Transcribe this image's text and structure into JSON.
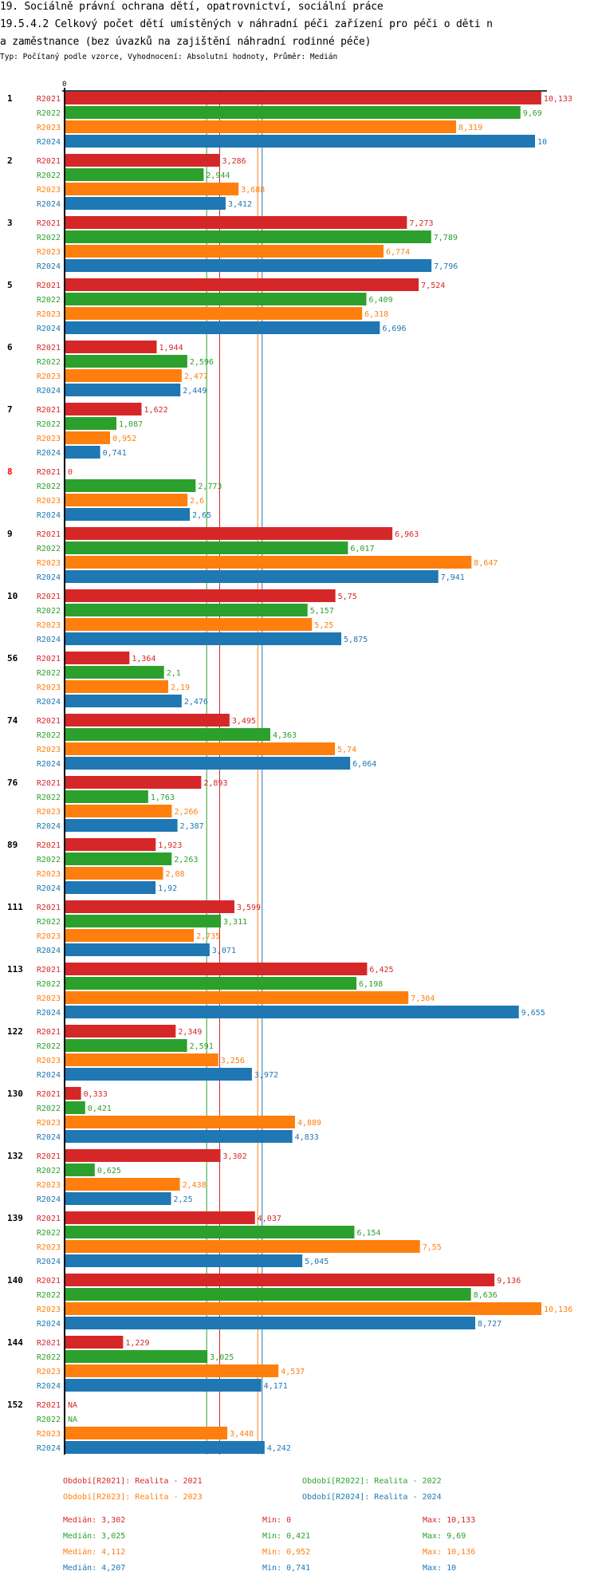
{
  "header": {
    "title_line1": "19. Sociálně právní ochrana dětí, opatrovnictví, sociální práce",
    "title_line2": "19.5.4.2 Celkový počet dětí umístěných v náhradní péči zařízení pro péči o děti n",
    "title_line3": "a zaměstnance (bez úvazků na zajištění náhradní rodinné péče)",
    "subtitle": "Typ: Počítaný podle vzorce, Vyhodnocení: Absolutní hodnoty, Průměr: Medián"
  },
  "colors": {
    "R2021": "#d62728",
    "R2022": "#2ca02c",
    "R2023": "#ff7f0e",
    "R2024": "#1f77b4",
    "highlight_category": "#ff0000"
  },
  "chart_data": {
    "type": "bar",
    "orientation": "horizontal",
    "title": "19.5.4.2 Celkový počet dětí umístěných v náhradní péči zařízení pro péči o děti na zaměstnance (bez úvazků na zajištění náhradní rodinné péče)",
    "xlabel": "",
    "ylabel": "",
    "x_tick_labels": [
      "0"
    ],
    "xlim": [
      0,
      10.2
    ],
    "grid": false,
    "legend_position": "bottom",
    "categories": [
      "1",
      "2",
      "3",
      "5",
      "6",
      "7",
      "8",
      "9",
      "10",
      "56",
      "74",
      "76",
      "89",
      "111",
      "113",
      "122",
      "130",
      "132",
      "139",
      "140",
      "144",
      "152"
    ],
    "highlighted_categories": [
      "8"
    ],
    "series": [
      {
        "name": "R2021",
        "values": [
          10.133,
          3.286,
          7.273,
          7.524,
          1.944,
          1.622,
          0,
          6.963,
          5.75,
          1.364,
          3.495,
          2.893,
          1.923,
          3.599,
          6.425,
          2.349,
          0.333,
          3.302,
          4.037,
          9.136,
          1.229,
          null
        ],
        "labels": [
          "10,133",
          "3,286",
          "7,273",
          "7,524",
          "1,944",
          "1,622",
          "0",
          "6,963",
          "5,75",
          "1,364",
          "3,495",
          "2,893",
          "1,923",
          "3,599",
          "6,425",
          "2,349",
          "0,333",
          "3,302",
          "4,037",
          "9,136",
          "1,229",
          "NA"
        ]
      },
      {
        "name": "R2022",
        "values": [
          9.69,
          2.944,
          7.789,
          6.409,
          2.596,
          1.087,
          2.773,
          6.017,
          5.157,
          2.1,
          4.363,
          1.763,
          2.263,
          3.311,
          6.198,
          2.591,
          0.421,
          0.625,
          6.154,
          8.636,
          3.025,
          null
        ],
        "labels": [
          "9,69",
          "2,944",
          "7,789",
          "6,409",
          "2,596",
          "1,087",
          "2,773",
          "6,017",
          "5,157",
          "2,1",
          "4,363",
          "1,763",
          "2,263",
          "3,311",
          "6,198",
          "2,591",
          "0,421",
          "0,625",
          "6,154",
          "8,636",
          "3,025",
          "NA"
        ]
      },
      {
        "name": "R2023",
        "values": [
          8.319,
          3.688,
          6.774,
          6.318,
          2.477,
          0.952,
          2.6,
          8.647,
          5.25,
          2.19,
          5.74,
          2.266,
          2.08,
          2.735,
          7.304,
          3.256,
          4.889,
          2.438,
          7.55,
          10.136,
          4.537,
          3.448
        ],
        "labels": [
          "8,319",
          "3,688",
          "6,774",
          "6,318",
          "2,477",
          "0,952",
          "2,6",
          "8,647",
          "5,25",
          "2,19",
          "5,74",
          "2,266",
          "2,08",
          "2,735",
          "7,304",
          "3,256",
          "4,889",
          "2,438",
          "7,55",
          "10,136",
          "4,537",
          "3,448"
        ]
      },
      {
        "name": "R2024",
        "values": [
          10,
          3.412,
          7.796,
          6.696,
          2.449,
          0.741,
          2.65,
          7.941,
          5.875,
          2.476,
          6.064,
          2.387,
          1.92,
          3.071,
          9.655,
          3.972,
          4.833,
          2.25,
          5.045,
          8.727,
          4.171,
          4.242
        ],
        "labels": [
          "10",
          "3,412",
          "7,796",
          "6,696",
          "2,449",
          "0,741",
          "2,65",
          "7,941",
          "5,875",
          "2,476",
          "6,064",
          "2,387",
          "1,92",
          "3,071",
          "9,655",
          "3,972",
          "4,833",
          "2,25",
          "5,045",
          "8,727",
          "4,171",
          "4,242"
        ]
      }
    ],
    "median_lines": [
      {
        "series": "R2021",
        "value": 3.302
      },
      {
        "series": "R2022",
        "value": 3.025
      },
      {
        "series": "R2023",
        "value": 4.112
      },
      {
        "series": "R2024",
        "value": 4.207
      }
    ]
  },
  "legend": {
    "items": [
      {
        "series": "R2021",
        "text": "Období[R2021]: Realita - 2021"
      },
      {
        "series": "R2022",
        "text": "Období[R2022]: Realita - 2022"
      },
      {
        "series": "R2023",
        "text": "Období[R2023]: Realita - 2023"
      },
      {
        "series": "R2024",
        "text": "Období[R2024]: Realita - 2024"
      }
    ]
  },
  "stats": [
    {
      "series": "R2021",
      "median": "Medián: 3,302",
      "min": "Min: 0",
      "max": "Max: 10,133"
    },
    {
      "series": "R2022",
      "median": "Medián: 3,025",
      "min": "Min: 0,421",
      "max": "Max: 9,69"
    },
    {
      "series": "R2023",
      "median": "Medián: 4,112",
      "min": "Min: 0,952",
      "max": "Max: 10,136"
    },
    {
      "series": "R2024",
      "median": "Medián: 4,207",
      "min": "Min: 0,741",
      "max": "Max: 10"
    }
  ]
}
